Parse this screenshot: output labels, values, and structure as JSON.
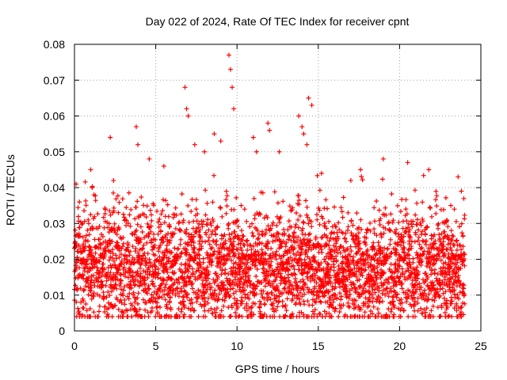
{
  "chart_data": {
    "type": "scatter",
    "title": "Day 022 of 2024, Rate Of TEC Index for receiver cpnt",
    "xlabel": "GPS time / hours",
    "ylabel": "ROTI / TECUs",
    "xlim": [
      0,
      25
    ],
    "ylim": [
      0,
      0.08
    ],
    "x_ticks": [
      "0",
      "5",
      "10",
      "15",
      "20",
      "25"
    ],
    "y_ticks": [
      "0",
      "0.01",
      "0.02",
      "0.03",
      "0.04",
      "0.05",
      "0.06",
      "0.07",
      "0.08"
    ],
    "grid": true,
    "marker": "plus",
    "color": "#ff0000",
    "series": [
      {
        "x": [
          0.1,
          0.3,
          0.5,
          1.0,
          1.2,
          2.2,
          2.4,
          3.8,
          3.9,
          4.6,
          5.5,
          6.8,
          6.9,
          7.0,
          7.4,
          8.0,
          8.6,
          9.0,
          9.5,
          9.6,
          9.7,
          9.8,
          11.0,
          11.2,
          11.9,
          12.0,
          12.6,
          13.8,
          14.0,
          14.1,
          14.3,
          14.4,
          14.6,
          15.2,
          17.0,
          17.6,
          19.0,
          20.5,
          21.8,
          23.6,
          23.8
        ]
      },
      {
        "y": [
          0.041,
          0.036,
          0.03,
          0.045,
          0.038,
          0.054,
          0.042,
          0.057,
          0.052,
          0.048,
          0.046,
          0.068,
          0.062,
          0.06,
          0.052,
          0.05,
          0.055,
          0.053,
          0.077,
          0.073,
          0.068,
          0.062,
          0.054,
          0.05,
          0.058,
          0.056,
          0.05,
          0.06,
          0.057,
          0.055,
          0.052,
          0.065,
          0.063,
          0.044,
          0.042,
          0.045,
          0.048,
          0.047,
          0.045,
          0.043,
          0.039
        ]
      }
    ],
    "peaks": {
      "x": [
        0.1,
        0.3,
        0.5,
        1.0,
        1.2,
        2.2,
        2.4,
        3.8,
        3.9,
        4.6,
        5.5,
        6.8,
        6.9,
        7.0,
        7.4,
        8.0,
        8.6,
        9.0,
        9.5,
        9.6,
        9.7,
        9.8,
        11.0,
        11.2,
        11.9,
        12.0,
        12.6,
        13.8,
        14.0,
        14.1,
        14.3,
        14.4,
        14.6,
        15.2,
        17.0,
        17.6,
        19.0,
        20.5,
        21.8,
        23.6,
        23.8
      ],
      "y": [
        0.041,
        0.036,
        0.03,
        0.045,
        0.038,
        0.054,
        0.042,
        0.057,
        0.052,
        0.048,
        0.046,
        0.068,
        0.062,
        0.06,
        0.052,
        0.05,
        0.055,
        0.053,
        0.077,
        0.073,
        0.068,
        0.062,
        0.054,
        0.05,
        0.058,
        0.056,
        0.05,
        0.06,
        0.057,
        0.055,
        0.052,
        0.065,
        0.063,
        0.044,
        0.042,
        0.045,
        0.048,
        0.047,
        0.045,
        0.043,
        0.039
      ]
    },
    "background": {
      "x_start": 0,
      "x_end": 24,
      "x_step": 0.02,
      "baseline_y": 0.017,
      "spread_y": [
        0.005,
        0.04
      ]
    }
  }
}
